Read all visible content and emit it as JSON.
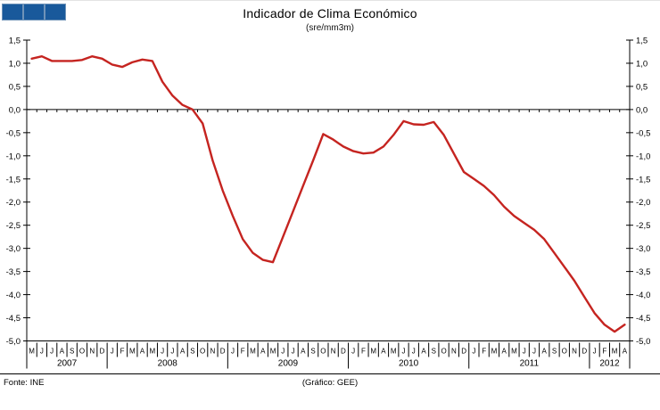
{
  "header": {
    "title": "Indicador de Clima Económico",
    "subtitle": "(sre/mm3m)"
  },
  "footer": {
    "left": "Fonte: INE",
    "center": "(Gráfico: GEE)"
  },
  "colors": {
    "line_red": "#c52420",
    "logo_blue": "#19599b",
    "axis_black": "#000000"
  },
  "chart_data": {
    "type": "line",
    "title": "Indicador de Clima Económico",
    "subtitle": "(sre/mm3m)",
    "ylim": [
      -5.0,
      1.5
    ],
    "ytick_step": 0.5,
    "ytick_labels": [
      "1,5",
      "1,0",
      "0,5",
      "0,0",
      "-0,5",
      "-1,0",
      "-1,5",
      "-2,0",
      "-2,5",
      "-3,0",
      "-3,5",
      "-4,0",
      "-4,5",
      "-5,0"
    ],
    "grid": false,
    "legend": "none",
    "x_months": [
      "M",
      "J",
      "J",
      "A",
      "S",
      "O",
      "N",
      "D",
      "J",
      "F",
      "M",
      "A",
      "M",
      "J",
      "J",
      "A",
      "S",
      "O",
      "N",
      "D",
      "J",
      "F",
      "M",
      "A",
      "M",
      "J",
      "J",
      "A",
      "S",
      "O",
      "N",
      "D",
      "J",
      "F",
      "M",
      "A",
      "M",
      "J",
      "J",
      "A",
      "S",
      "O",
      "N",
      "D",
      "J",
      "F",
      "M",
      "A",
      "M",
      "J",
      "J",
      "A",
      "S",
      "O",
      "N",
      "D",
      "J",
      "F",
      "M",
      "A"
    ],
    "years": [
      {
        "label": "2007",
        "months": 8
      },
      {
        "label": "2008",
        "months": 12
      },
      {
        "label": "2009",
        "months": 12
      },
      {
        "label": "2010",
        "months": 12
      },
      {
        "label": "2011",
        "months": 12
      },
      {
        "label": "2012",
        "months": 4
      }
    ],
    "series": [
      {
        "name": "Indicador de Clima Económico",
        "color": "#c52420",
        "values": [
          1.1,
          1.15,
          1.05,
          1.05,
          1.05,
          1.07,
          1.15,
          1.1,
          0.97,
          0.92,
          1.02,
          1.08,
          1.05,
          0.6,
          0.3,
          0.1,
          0.0,
          -0.3,
          -1.1,
          -1.75,
          -2.3,
          -2.8,
          -3.1,
          -3.25,
          -3.3,
          -2.75,
          -2.2,
          -1.65,
          -1.1,
          -0.53,
          -0.65,
          -0.8,
          -0.9,
          -0.95,
          -0.93,
          -0.8,
          -0.55,
          -0.25,
          -0.32,
          -0.33,
          -0.27,
          -0.55,
          -0.95,
          -1.35,
          -1.5,
          -1.65,
          -1.85,
          -2.1,
          -2.3,
          -2.45,
          -2.6,
          -2.8,
          -3.1,
          -3.4,
          -3.7,
          -4.05,
          -4.4,
          -4.65,
          -4.8,
          -4.65
        ]
      }
    ]
  }
}
